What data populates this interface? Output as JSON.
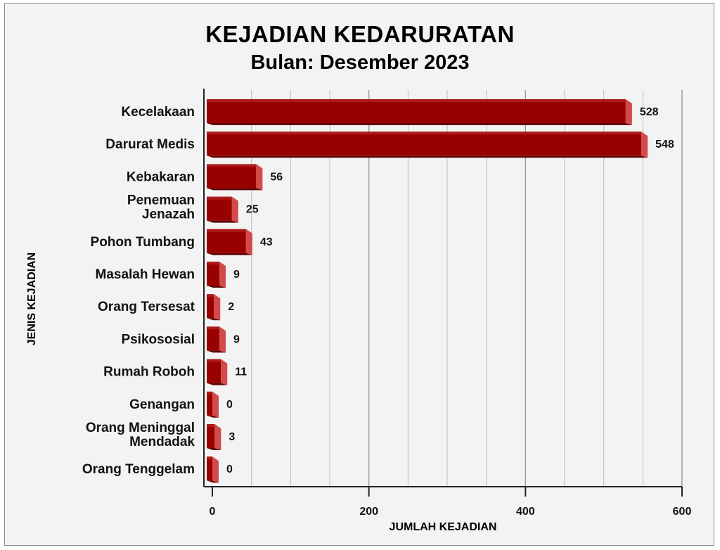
{
  "chart_data": {
    "type": "bar",
    "orientation": "horizontal",
    "title": "KEJADIAN KEDARURATAN",
    "subtitle": "Bulan: Desember 2023",
    "xlabel": "JUMLAH KEJADIAN",
    "ylabel": "JENIS KEJADIAN",
    "xlim": [
      0,
      600
    ],
    "xticks": [
      0,
      200,
      400,
      600
    ],
    "grid": true,
    "bar_color": "#990000",
    "categories": [
      [
        "Kecelakaan"
      ],
      [
        "Darurat Medis"
      ],
      [
        "Kebakaran"
      ],
      [
        "Penemuan",
        "Jenazah"
      ],
      [
        "Pohon Tumbang"
      ],
      [
        "Masalah Hewan"
      ],
      [
        "Orang Tersesat"
      ],
      [
        "Psikososial"
      ],
      [
        "Rumah Roboh"
      ],
      [
        "Genangan"
      ],
      [
        "Orang Meninggal",
        "Mendadak"
      ],
      [
        "Orang Tenggelam"
      ]
    ],
    "values": [
      528,
      548,
      56,
      25,
      43,
      9,
      2,
      9,
      11,
      0,
      3,
      0
    ]
  }
}
